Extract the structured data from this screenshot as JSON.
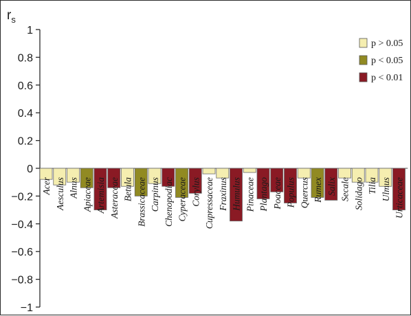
{
  "chart_data": {
    "type": "bar",
    "ylabel": "r",
    "ylabel_subscript": "s",
    "ylim": [
      -1,
      1
    ],
    "yticks": [
      {
        "value": 1,
        "label": "1"
      },
      {
        "value": 0.8,
        "label": "0.8"
      },
      {
        "value": 0.6,
        "label": "0.6"
      },
      {
        "value": 0.4,
        "label": "0.4"
      },
      {
        "value": 0.2,
        "label": "0.2"
      },
      {
        "value": 0,
        "label": "0"
      },
      {
        "value": -0.2,
        "label": "−0.2"
      },
      {
        "value": -0.4,
        "label": "−0.4"
      },
      {
        "value": -0.6,
        "label": "−0.6"
      },
      {
        "value": -0.8,
        "label": "−0.8"
      },
      {
        "value": -1,
        "label": "−1"
      }
    ],
    "grid": false,
    "legend_position": "top-right",
    "legend": [
      {
        "key": "ns",
        "label": "p > 0.05",
        "color": "#f5eeb0"
      },
      {
        "key": "p05",
        "label": "p < 0.05",
        "color": "#918a22"
      },
      {
        "key": "p01",
        "label": "p < 0.01",
        "color": "#8a1a24"
      }
    ],
    "categories": [
      "Acer",
      "Aesculus",
      "Alnus",
      "Apiaceae",
      "Artemisia",
      "Asteraceae",
      "Betula",
      "Brassicaceae",
      "Carpinus",
      "Chenopodiac",
      "Cyperaceae",
      "Corylus",
      "Cupressaceae",
      "Fraxinus",
      "Humulus",
      "Pinaceae",
      "Plantago",
      "Poaceae",
      "Populus",
      "Quercus",
      "Rumex",
      "Salix",
      "Secale",
      "Solidago",
      "Tilia",
      "Ulmus",
      "Urticaceae"
    ],
    "values": [
      -0.08,
      -0.12,
      -0.1,
      -0.14,
      -0.3,
      -0.14,
      -0.13,
      -0.2,
      -0.11,
      -0.13,
      -0.21,
      -0.18,
      -0.04,
      -0.07,
      -0.38,
      -0.03,
      -0.22,
      -0.17,
      -0.25,
      -0.07,
      -0.21,
      -0.23,
      -0.07,
      -0.1,
      -0.1,
      -0.13,
      -0.3
    ],
    "significance": [
      "ns",
      "ns",
      "ns",
      "p05",
      "p01",
      "p01",
      "ns",
      "p05",
      "ns",
      "p01",
      "p05",
      "p01",
      "ns",
      "ns",
      "p01",
      "ns",
      "p01",
      "p01",
      "p01",
      "ns",
      "p05",
      "p01",
      "ns",
      "ns",
      "ns",
      "ns",
      "p01"
    ]
  }
}
